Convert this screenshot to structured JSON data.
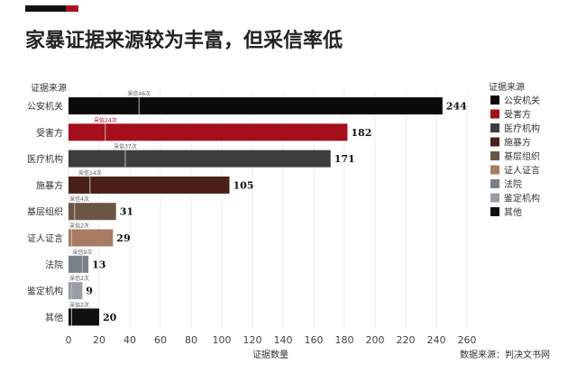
{
  "chart_data": {
    "type": "bar",
    "orientation": "horizontal",
    "title": "家暴证据来源较为丰富，但采信率低",
    "ylabel": "证据来源",
    "xlabel": "证据数量",
    "source": "数据来源：判决文书网",
    "xlim": [
      0,
      260
    ],
    "xticks": [
      0,
      20,
      40,
      60,
      80,
      100,
      120,
      140,
      160,
      180,
      200,
      220,
      240,
      260
    ],
    "grid": true,
    "legend_title": "证据来源",
    "legend_position": "right",
    "categories": [
      "公安机关",
      "受害方",
      "医疗机构",
      "施暴方",
      "基层组织",
      "证人证言",
      "法院",
      "鉴定机构",
      "其他"
    ],
    "values": [
      244,
      182,
      171,
      105,
      31,
      29,
      13,
      9,
      20
    ],
    "adopted": [
      46,
      24,
      37,
      14,
      4,
      2,
      9,
      2,
      2
    ],
    "adopted_label_prefix": "采信",
    "adopted_label_suffix": "次",
    "colors": [
      "#0a0a0a",
      "#a50f1c",
      "#3d3d3d",
      "#4a1f18",
      "#6b5646",
      "#a87c62",
      "#7a8089",
      "#9a9ca8",
      "#111111"
    ]
  }
}
